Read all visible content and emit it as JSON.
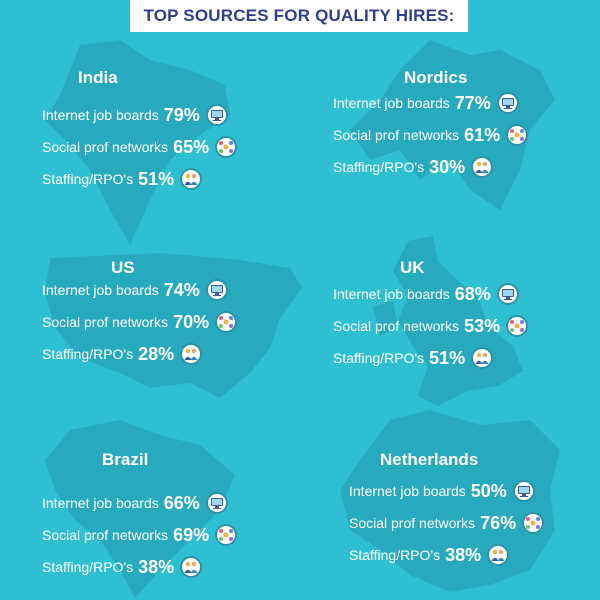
{
  "title": "TOP SOURCES FOR QUALITY HIRES:",
  "regions": [
    {
      "name": "India",
      "rows": [
        {
          "label": "Internet job boards",
          "pct": "79%",
          "icon": "monitor-icon"
        },
        {
          "label": "Social prof networks",
          "pct": "65%",
          "icon": "social-network-icon"
        },
        {
          "label": "Staffing/RPO's",
          "pct": "51%",
          "icon": "people-icon"
        }
      ]
    },
    {
      "name": "Nordics",
      "rows": [
        {
          "label": "Internet job boards",
          "pct": "77%",
          "icon": "monitor-icon"
        },
        {
          "label": "Social prof networks",
          "pct": "61%",
          "icon": "social-network-icon"
        },
        {
          "label": "Staffing/RPO's",
          "pct": "30%",
          "icon": "people-icon"
        }
      ]
    },
    {
      "name": "US",
      "rows": [
        {
          "label": "Internet job boards",
          "pct": "74%",
          "icon": "monitor-icon"
        },
        {
          "label": "Social prof networks",
          "pct": "70%",
          "icon": "social-network-icon"
        },
        {
          "label": "Staffing/RPO's",
          "pct": "28%",
          "icon": "people-icon"
        }
      ]
    },
    {
      "name": "UK",
      "rows": [
        {
          "label": "Internet job boards",
          "pct": "68%",
          "icon": "monitor-icon"
        },
        {
          "label": "Social prof networks",
          "pct": "53%",
          "icon": "social-network-icon"
        },
        {
          "label": "Staffing/RPO's",
          "pct": "51%",
          "icon": "people-icon"
        }
      ]
    },
    {
      "name": "Brazil",
      "rows": [
        {
          "label": "Internet job boards",
          "pct": "66%",
          "icon": "monitor-icon"
        },
        {
          "label": "Social prof networks",
          "pct": "69%",
          "icon": "social-network-icon"
        },
        {
          "label": "Staffing/RPO's",
          "pct": "38%",
          "icon": "people-icon"
        }
      ]
    },
    {
      "name": "Netherlands",
      "rows": [
        {
          "label": "Internet job boards",
          "pct": "50%",
          "icon": "monitor-icon"
        },
        {
          "label": "Social prof networks",
          "pct": "76%",
          "icon": "social-network-icon"
        },
        {
          "label": "Staffing/RPO's",
          "pct": "38%",
          "icon": "people-icon"
        }
      ]
    }
  ],
  "colors": {
    "background": "#2fbfd3",
    "title_text": "#2f3f8e",
    "map_silhouette": "#27a6ba",
    "text": "#ffffff"
  }
}
